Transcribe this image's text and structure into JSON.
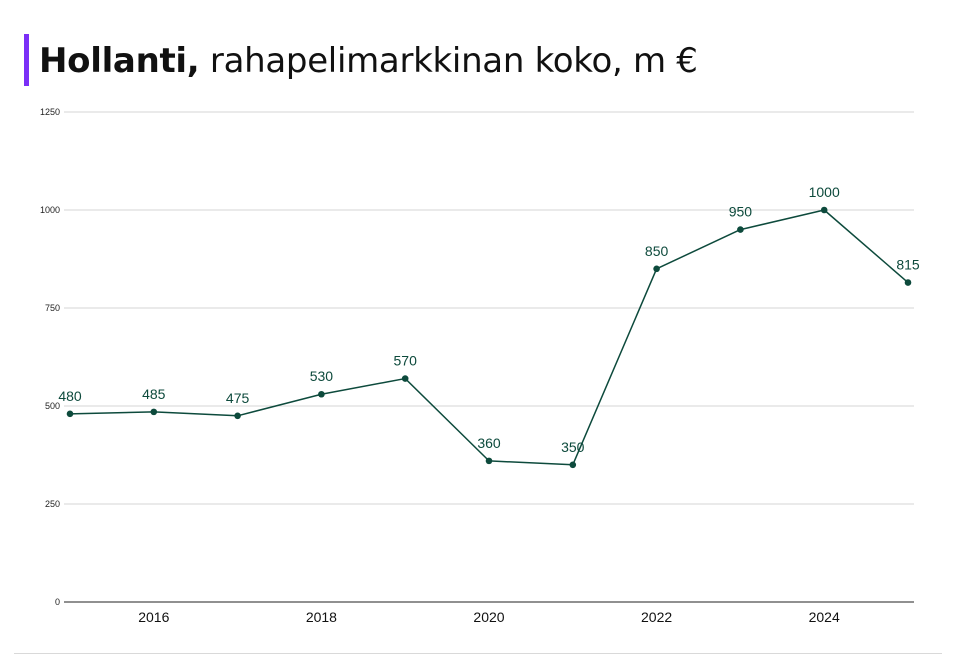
{
  "header": {
    "title_bold": "Hollanti,",
    "title_rest": " rahapelimarkkinan koko, m €",
    "accent_color": "#7b2ff7"
  },
  "chart_data": {
    "type": "line",
    "title": "Hollanti, rahapelimarkkinan koko, m €",
    "x": [
      2015,
      2016,
      2017,
      2018,
      2019,
      2020,
      2021,
      2022,
      2023,
      2024,
      2025
    ],
    "series": [
      {
        "values": [
          480,
          485,
          475,
          530,
          570,
          360,
          350,
          850,
          950,
          1000,
          815
        ],
        "color": "#0d4a3c"
      }
    ],
    "data_labels": [
      "480",
      "485",
      "475",
      "530",
      "570",
      "360",
      "350",
      "850",
      "950",
      "1000",
      "815"
    ],
    "x_ticks": [
      "2016",
      "2018",
      "2020",
      "2022",
      "2024"
    ],
    "y_ticks": [
      "0",
      "250",
      "500",
      "750",
      "1000",
      "1250"
    ],
    "ylim": [
      0,
      1250
    ],
    "xlim": [
      2015,
      2025
    ],
    "grid": true,
    "legend": "none"
  }
}
